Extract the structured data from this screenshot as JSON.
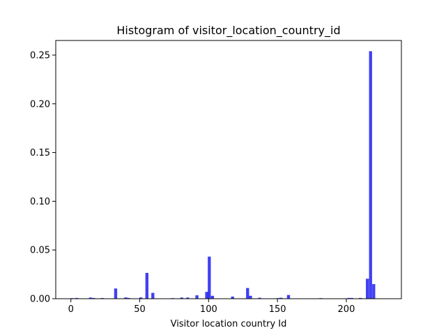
{
  "chart_data": {
    "type": "bar",
    "title": "Histogram of visitor_location_country_id",
    "xlabel": "Visitor location country Id",
    "ylabel": "",
    "xlim": [
      -11,
      240
    ],
    "ylim": [
      0,
      0.265
    ],
    "bin_width": 2.2,
    "bar_color": "#0000ee",
    "bar_opacity": 0.75,
    "grid": false,
    "x_ticks": [
      {
        "value": 0,
        "label": "0"
      },
      {
        "value": 50,
        "label": "50"
      },
      {
        "value": 100,
        "label": "100"
      },
      {
        "value": 150,
        "label": "150"
      },
      {
        "value": 200,
        "label": "200"
      }
    ],
    "y_ticks": [
      {
        "value": 0.0,
        "label": "0.00"
      },
      {
        "value": 0.05,
        "label": "0.05"
      },
      {
        "value": 0.1,
        "label": "0.10"
      },
      {
        "value": 0.15,
        "label": "0.15"
      },
      {
        "value": 0.2,
        "label": "0.20"
      },
      {
        "value": 0.25,
        "label": "0.25"
      }
    ],
    "bins": [
      {
        "x": 0.9,
        "value": 0.0006
      },
      {
        "x": 4.2,
        "value": 0.0008
      },
      {
        "x": 14.2,
        "value": 0.0012
      },
      {
        "x": 16.4,
        "value": 0.0008
      },
      {
        "x": 22.8,
        "value": 0.0007
      },
      {
        "x": 32.5,
        "value": 0.0105
      },
      {
        "x": 39.8,
        "value": 0.0013
      },
      {
        "x": 41.9,
        "value": 0.0008
      },
      {
        "x": 50.8,
        "value": 0.0013
      },
      {
        "x": 55.2,
        "value": 0.0265
      },
      {
        "x": 59.5,
        "value": 0.006
      },
      {
        "x": 73.8,
        "value": 0.0006
      },
      {
        "x": 80.5,
        "value": 0.0012
      },
      {
        "x": 84.8,
        "value": 0.0012
      },
      {
        "x": 91.5,
        "value": 0.0035
      },
      {
        "x": 98.6,
        "value": 0.007
      },
      {
        "x": 100.5,
        "value": 0.0432
      },
      {
        "x": 102.8,
        "value": 0.003
      },
      {
        "x": 117.4,
        "value": 0.0022
      },
      {
        "x": 128.3,
        "value": 0.011
      },
      {
        "x": 130.4,
        "value": 0.003
      },
      {
        "x": 137.1,
        "value": 0.001
      },
      {
        "x": 150.3,
        "value": 0.0006
      },
      {
        "x": 152.5,
        "value": 0.001
      },
      {
        "x": 158.0,
        "value": 0.0038
      },
      {
        "x": 181.5,
        "value": 0.0006
      },
      {
        "x": 201.8,
        "value": 0.0008
      },
      {
        "x": 204.0,
        "value": 0.0008
      },
      {
        "x": 210.2,
        "value": 0.0008
      },
      {
        "x": 215.3,
        "value": 0.0205
      },
      {
        "x": 217.6,
        "value": 0.254
      },
      {
        "x": 219.9,
        "value": 0.015
      }
    ]
  }
}
